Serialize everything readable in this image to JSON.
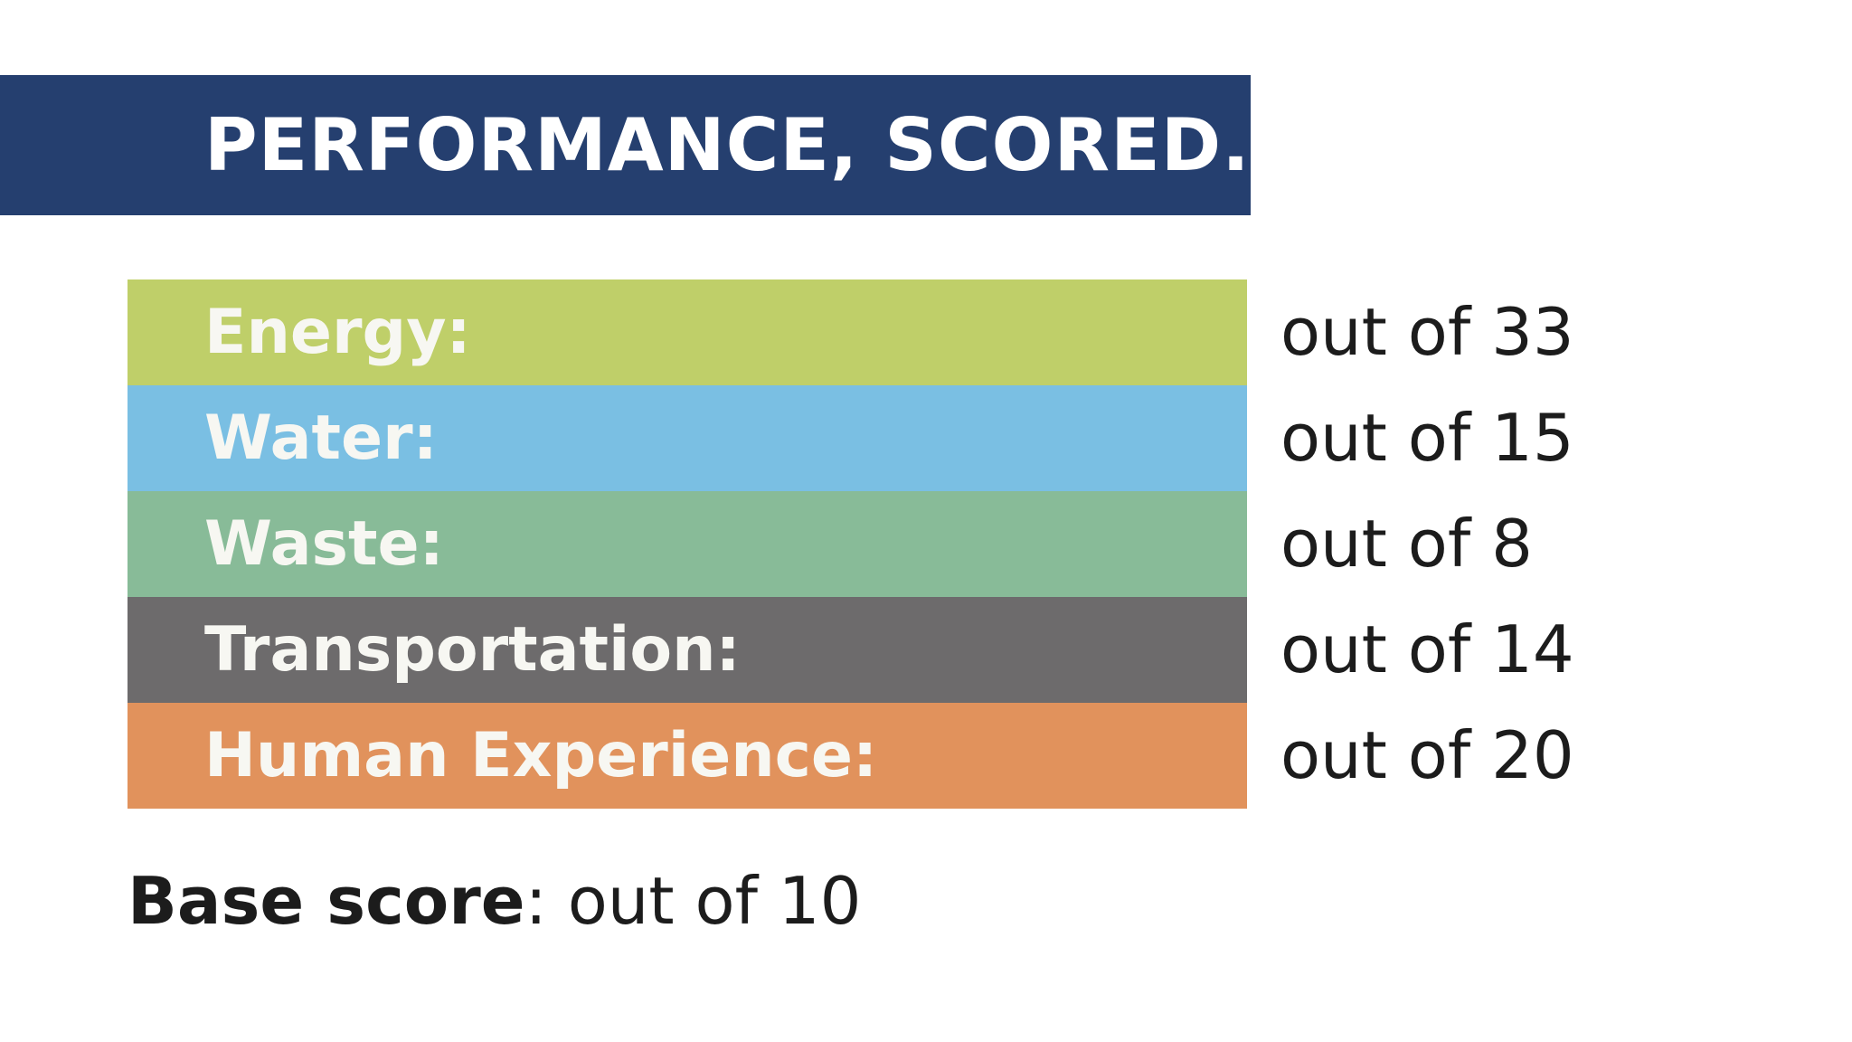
{
  "title": "PERFORMANCE, SCORED.",
  "colors": {
    "title_banner": "#253f6f",
    "energy": "#bfcf69",
    "water": "#7abfe3",
    "waste": "#88bb98",
    "transportation": "#6d6b6c",
    "human_experience": "#e1925c"
  },
  "categories": [
    {
      "label": "Energy:",
      "max": "out of 33",
      "color": "#bfcf69"
    },
    {
      "label": "Water:",
      "max": "out of 15",
      "color": "#7abfe3"
    },
    {
      "label": "Waste:",
      "max": "out of 8",
      "color": "#88bb98"
    },
    {
      "label": "Transportation:",
      "max": "out of 14",
      "color": "#6d6b6c"
    },
    {
      "label": "Human Experience:",
      "max": "out of 20",
      "color": "#e1925c"
    }
  ],
  "base_score": {
    "label": "Base score",
    "separator": ":",
    "value": " out of 10"
  }
}
